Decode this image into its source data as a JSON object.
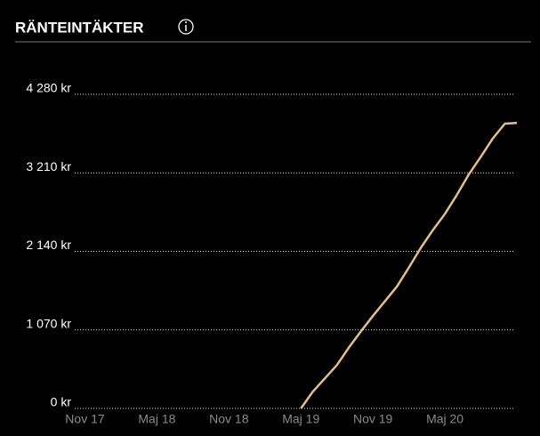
{
  "chart_data": {
    "type": "line",
    "title": "RÄNTEINTÄKTER",
    "x": [
      "2019-05",
      "2019-06",
      "2019-07",
      "2019-08",
      "2019-09",
      "2019-10",
      "2019-11",
      "2019-12",
      "2020-01",
      "2020-02",
      "2020-03",
      "2020-04",
      "2020-05",
      "2020-06",
      "2020-07",
      "2020-08",
      "2020-09",
      "2020-10",
      "2020-11"
    ],
    "series": [
      {
        "color": "#e6c07c",
        "values": [
          0,
          230,
          410,
          590,
          830,
          1050,
          1260,
          1460,
          1660,
          1920,
          2190,
          2430,
          2650,
          2910,
          3190,
          3430,
          3680,
          3880,
          3890
        ]
      }
    ],
    "xlim": [
      "2017-10",
      "2020-11"
    ],
    "xticks": [
      {
        "value": "2017-11",
        "label": "Nov 17"
      },
      {
        "value": "2018-05",
        "label": "Maj 18"
      },
      {
        "value": "2018-11",
        "label": "Nov 18"
      },
      {
        "value": "2019-05",
        "label": "Maj 19"
      },
      {
        "value": "2019-11",
        "label": "Nov 19"
      },
      {
        "value": "2020-05",
        "label": "Maj 20"
      }
    ],
    "ylim": [
      0,
      4280
    ],
    "yticks": [
      {
        "value": 0,
        "label": "0 kr"
      },
      {
        "value": 1070,
        "label": "1 070 kr"
      },
      {
        "value": 2140,
        "label": "2 140 kr"
      },
      {
        "value": 3210,
        "label": "3 210 kr"
      },
      {
        "value": 4280,
        "label": "4 280 kr"
      }
    ],
    "grid": true
  }
}
